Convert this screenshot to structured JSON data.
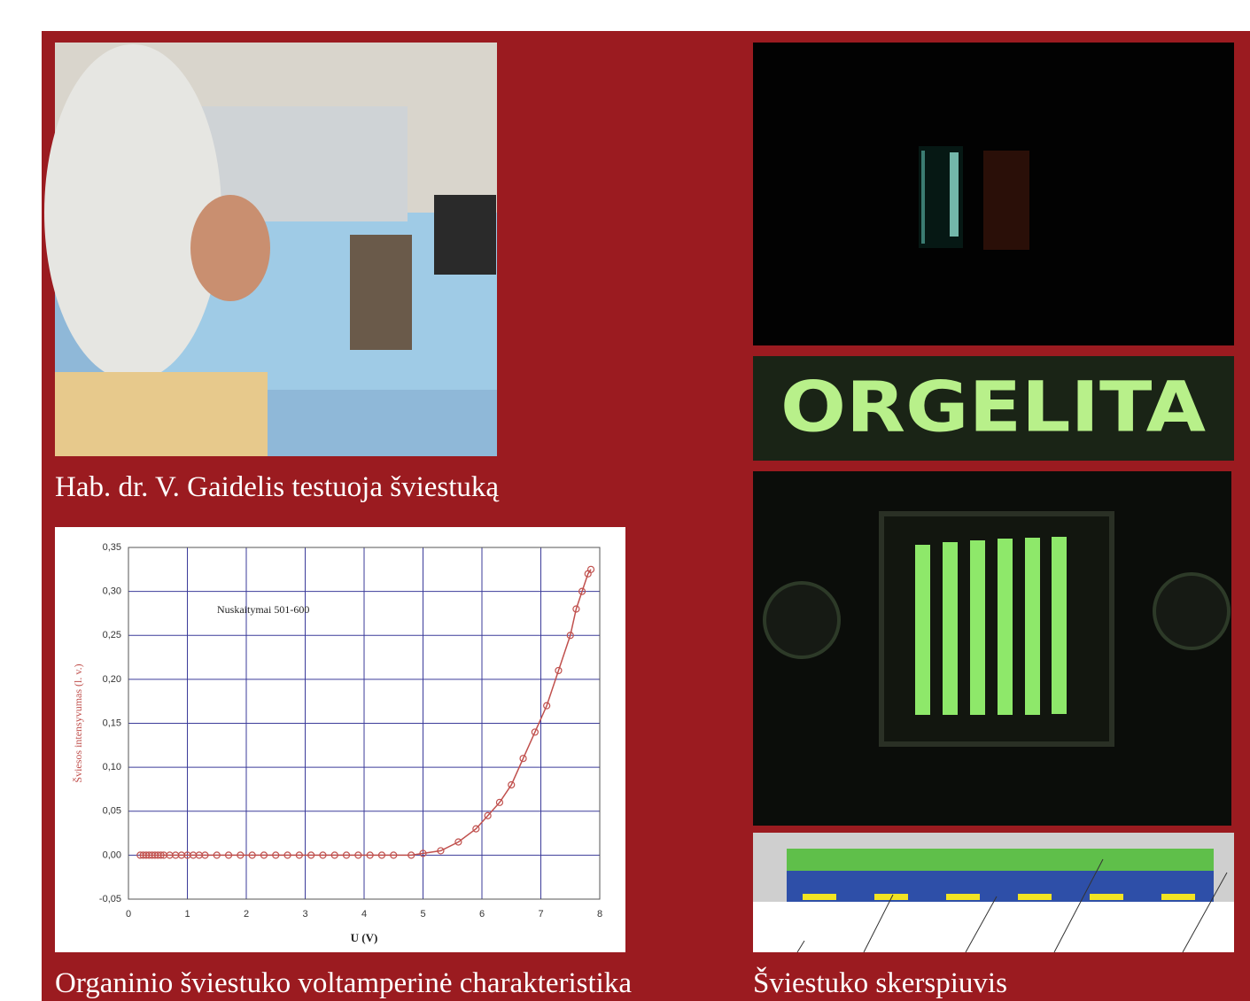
{
  "captions": {
    "photo": "Hab. dr. V. Gaidelis testuoja šviestuką",
    "chart": "Organinio šviestuko voltamperinė charakteristika",
    "cross_section": "Šviestuko skerspiuvis"
  },
  "sign_text": "ORGELITA",
  "chart_data": {
    "type": "scatter",
    "line": true,
    "color": "#c0504d",
    "grid": true,
    "annotation": "Nuskaitymai 501-600",
    "xlabel": "U (V)",
    "ylabel": "Šviesos intensyvumas (l. v.)",
    "x": [
      0.2,
      0.25,
      0.3,
      0.35,
      0.4,
      0.45,
      0.5,
      0.55,
      0.6,
      0.7,
      0.8,
      0.9,
      1.0,
      1.1,
      1.2,
      1.3,
      1.5,
      1.7,
      1.9,
      2.1,
      2.3,
      2.5,
      2.7,
      2.9,
      3.1,
      3.3,
      3.5,
      3.7,
      3.9,
      4.1,
      4.3,
      4.5,
      4.8,
      5.0,
      5.3,
      5.6,
      5.9,
      6.1,
      6.3,
      6.5,
      6.7,
      6.9,
      7.1,
      7.3,
      7.5,
      7.6,
      7.7,
      7.8,
      7.85
    ],
    "values": [
      0,
      0,
      0,
      0,
      0,
      0,
      0,
      0,
      0,
      0,
      0,
      0,
      0,
      0,
      0,
      0,
      0,
      0,
      0,
      0,
      0,
      0,
      0,
      0,
      0,
      0,
      0,
      0,
      0,
      0,
      0,
      0,
      0,
      0.002,
      0.005,
      0.015,
      0.03,
      0.045,
      0.06,
      0.08,
      0.11,
      0.14,
      0.17,
      0.21,
      0.25,
      0.28,
      0.3,
      0.32,
      0.325
    ],
    "xlim": [
      0,
      8
    ],
    "xticks": [
      0,
      1,
      2,
      3,
      4,
      5,
      6,
      7,
      8
    ],
    "ylim": [
      -0.05,
      0.35
    ],
    "yticks": [
      {
        "value": -0.05,
        "label": "-0,05"
      },
      {
        "value": 0,
        "label": "0,00"
      },
      {
        "value": 0.05,
        "label": "0,05"
      },
      {
        "value": 0.1,
        "label": "0,10"
      },
      {
        "value": 0.15,
        "label": "0,15"
      },
      {
        "value": 0.2,
        "label": "0,20"
      },
      {
        "value": 0.25,
        "label": "0,25"
      },
      {
        "value": 0.3,
        "label": "0,30"
      },
      {
        "value": 0.35,
        "label": "0,35"
      }
    ]
  }
}
